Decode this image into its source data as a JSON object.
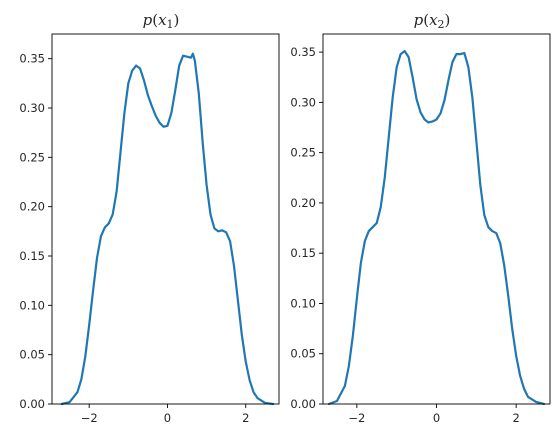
{
  "chart_data": [
    {
      "type": "line",
      "title_var": "x",
      "title_sub": "1",
      "xlim": [
        -2.95,
        2.85
      ],
      "ylim": [
        0,
        0.375
      ],
      "xticks": [
        -2,
        0,
        2
      ],
      "xtick_labels": [
        "−2",
        "0",
        "2"
      ],
      "yticks": [
        0,
        0.05,
        0.1,
        0.15,
        0.2,
        0.25,
        0.3,
        0.35
      ],
      "ytick_labels": [
        "0.00",
        "0.05",
        "0.10",
        "0.15",
        "0.20",
        "0.25",
        "0.30",
        "0.35"
      ],
      "color": "#1f77b4",
      "series": [
        {
          "x": [
            -2.7,
            -2.5,
            -2.3,
            -2.2,
            -2.1,
            -2.0,
            -1.9,
            -1.8,
            -1.7,
            -1.6,
            -1.5,
            -1.4,
            -1.3,
            -1.2,
            -1.1,
            -1.0,
            -0.9,
            -0.8,
            -0.7,
            -0.6,
            -0.5,
            -0.4,
            -0.3,
            -0.2,
            -0.1,
            0.0,
            0.1,
            0.2,
            0.3,
            0.4,
            0.5,
            0.6,
            0.65,
            0.7,
            0.8,
            0.9,
            1.0,
            1.1,
            1.2,
            1.3,
            1.4,
            1.5,
            1.6,
            1.7,
            1.8,
            1.9,
            2.0,
            2.1,
            2.2,
            2.3,
            2.5,
            2.7
          ],
          "y": [
            0.0,
            0.002,
            0.012,
            0.025,
            0.048,
            0.08,
            0.115,
            0.148,
            0.17,
            0.179,
            0.183,
            0.192,
            0.215,
            0.255,
            0.295,
            0.325,
            0.338,
            0.343,
            0.34,
            0.328,
            0.313,
            0.302,
            0.292,
            0.285,
            0.281,
            0.282,
            0.295,
            0.318,
            0.343,
            0.353,
            0.352,
            0.351,
            0.355,
            0.348,
            0.315,
            0.265,
            0.222,
            0.192,
            0.178,
            0.175,
            0.176,
            0.174,
            0.165,
            0.14,
            0.105,
            0.07,
            0.043,
            0.024,
            0.012,
            0.006,
            0.001,
            0.0
          ]
        }
      ]
    },
    {
      "type": "line",
      "title_var": "x",
      "title_sub": "2",
      "xlim": [
        -2.85,
        2.85
      ],
      "ylim": [
        0,
        0.368
      ],
      "xticks": [
        -2,
        0,
        2
      ],
      "xtick_labels": [
        "−2",
        "0",
        "2"
      ],
      "yticks": [
        0,
        0.05,
        0.1,
        0.15,
        0.2,
        0.25,
        0.3,
        0.35
      ],
      "ytick_labels": [
        "0.00",
        "0.05",
        "0.10",
        "0.15",
        "0.20",
        "0.25",
        "0.30",
        "0.35"
      ],
      "color": "#1f77b4",
      "series": [
        {
          "x": [
            -2.7,
            -2.5,
            -2.3,
            -2.2,
            -2.1,
            -2.0,
            -1.9,
            -1.8,
            -1.7,
            -1.6,
            -1.5,
            -1.4,
            -1.3,
            -1.2,
            -1.1,
            -1.0,
            -0.9,
            -0.8,
            -0.7,
            -0.6,
            -0.5,
            -0.4,
            -0.3,
            -0.2,
            -0.1,
            0.0,
            0.1,
            0.2,
            0.3,
            0.4,
            0.5,
            0.6,
            0.7,
            0.8,
            0.9,
            1.0,
            1.1,
            1.2,
            1.3,
            1.4,
            1.5,
            1.6,
            1.7,
            1.8,
            1.9,
            2.0,
            2.1,
            2.2,
            2.3,
            2.5,
            2.7
          ],
          "y": [
            0.0,
            0.003,
            0.018,
            0.038,
            0.068,
            0.105,
            0.14,
            0.162,
            0.172,
            0.176,
            0.18,
            0.196,
            0.225,
            0.265,
            0.305,
            0.335,
            0.348,
            0.351,
            0.345,
            0.325,
            0.303,
            0.29,
            0.283,
            0.28,
            0.281,
            0.283,
            0.289,
            0.302,
            0.322,
            0.34,
            0.348,
            0.348,
            0.349,
            0.335,
            0.305,
            0.262,
            0.218,
            0.188,
            0.176,
            0.172,
            0.17,
            0.16,
            0.138,
            0.108,
            0.075,
            0.048,
            0.028,
            0.015,
            0.007,
            0.002,
            0.0
          ]
        }
      ]
    }
  ]
}
